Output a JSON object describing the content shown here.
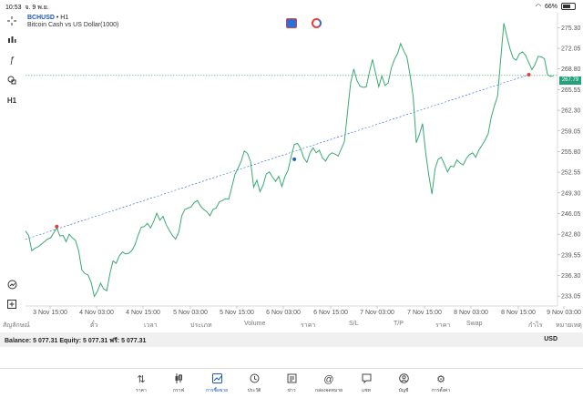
{
  "status": {
    "time": "10:53",
    "date": "จ. 9 พ.ย.",
    "battery": "66%"
  },
  "symbol": {
    "name": "BCHUSD",
    "timeframe": "• H1",
    "description": "Bitcoin Cash vs US Dollar(1000)"
  },
  "toolbar": {
    "timeframe_label": "H1"
  },
  "chart_data": {
    "type": "line",
    "y_ticks": [
      "275.30",
      "272.05",
      "268.80",
      "265.55",
      "262.30",
      "259.05",
      "255.80",
      "252.55",
      "249.30",
      "246.05",
      "242.80",
      "239.55",
      "236.30",
      "233.05"
    ],
    "x_ticks": [
      "3 Nov 15:00",
      "4 Nov 03:00",
      "4 Nov 15:00",
      "5 Nov 03:00",
      "5 Nov 15:00",
      "6 Nov 03:00",
      "6 Nov 15:00",
      "7 Nov 03:00",
      "7 Nov 15:00",
      "8 Nov 03:00",
      "8 Nov 15:00",
      "9 Nov 03:00"
    ],
    "ylim": [
      231.5,
      276.5
    ],
    "current_price": "267.79",
    "price_line": 267.79,
    "series_color": "#3aaa72",
    "values": [
      243.3,
      242.6,
      240.2,
      240.6,
      240.8,
      241.2,
      241.6,
      242.0,
      242.2,
      243.0,
      243.8,
      242.5,
      242.6,
      241.6,
      242.8,
      242.2,
      241.8,
      240.2,
      237.2,
      236.6,
      236.4,
      235.2,
      233.0,
      233.8,
      235.1,
      234.2,
      233.9,
      236.6,
      238.6,
      238.2,
      239.4,
      240.0,
      239.7,
      239.8,
      240.2,
      241.1,
      242.6,
      243.9,
      244.0,
      244.5,
      243.8,
      244.8,
      246.1,
      245.0,
      245.6,
      244.3,
      243.4,
      242.6,
      242.0,
      243.1,
      245.7,
      246.7,
      246.9,
      247.1,
      247.8,
      248.1,
      247.2,
      246.7,
      246.3,
      245.7,
      246.7,
      246.9,
      247.9,
      248.1,
      248.4,
      248.3,
      250.2,
      252.2,
      253.2,
      254.3,
      255.9,
      255.5,
      254.2,
      250.2,
      251.3,
      249.5,
      250.5,
      252.3,
      252.6,
      251.8,
      251.1,
      251.9,
      250.3,
      251.9,
      252.9,
      255.1,
      256.9,
      257.1,
      256.3,
      254.8,
      254.1,
      255.6,
      256.4,
      255.6,
      256.0,
      254.8,
      254.3,
      255.2,
      255.6,
      255.4,
      255.1,
      256.2,
      257.4,
      262.0,
      266.6,
      268.8,
      267.0,
      266.1,
      265.9,
      266.0,
      268.3,
      270.3,
      268.1,
      266.0,
      267.7,
      266.2,
      266.6,
      268.9,
      270.3,
      271.2,
      272.8,
      271.6,
      270.7,
      267.9,
      264.4,
      257.2,
      258.5,
      260.2,
      255.6,
      252.1,
      249.1,
      253.1,
      254.6,
      254.9,
      253.8,
      252.6,
      253.5,
      253.4,
      254.5,
      254.0,
      253.7,
      254.7,
      255.3,
      255.6,
      254.9,
      256.0,
      256.8,
      257.6,
      258.6,
      261.3,
      263.0,
      264.5,
      270.4,
      276.0,
      273.9,
      271.9,
      270.5,
      270.2,
      271.2,
      271.5,
      270.9,
      269.8,
      268.7,
      269.5,
      270.8,
      270.7,
      270.4,
      267.9,
      267.6,
      267.8
    ],
    "trend_line": {
      "from_index": 0,
      "from_price": 242.0,
      "to_index": 161,
      "to_price": 267.9
    },
    "trend_line_2": {
      "from_index": 86,
      "from_price": 254.6
    },
    "markers": [
      {
        "index": 10,
        "price": 244.0,
        "color": "#e04040"
      },
      {
        "index": 86,
        "price": 254.6,
        "color": "#2060d0"
      },
      {
        "index": 161,
        "price": 267.9,
        "color": "#e04040"
      }
    ]
  },
  "columns": [
    "สัญลักษณ์",
    "ตั๋ว",
    "เวลา",
    "ประเภท",
    "Volume",
    "ราคา",
    "S/L",
    "T/P",
    "ราคา",
    "Swap",
    "กำไร",
    "หมายเหตุ"
  ],
  "balance": {
    "text": "Balance: 5 077.31  Equity: 5 077.31  ฟรี: 5 077.31",
    "currency": "USD"
  },
  "tabs": [
    {
      "label": "ราคา",
      "icon": "arrows-icon"
    },
    {
      "label": "กราฟ",
      "icon": "candles-icon"
    },
    {
      "label": "การซื้อขาย",
      "icon": "trade-icon"
    },
    {
      "label": "ประวัติ",
      "icon": "history-icon"
    },
    {
      "label": "ข่าว",
      "icon": "news-icon"
    },
    {
      "label": "กล่องจดหมาย",
      "icon": "mail-icon"
    },
    {
      "label": "แชท",
      "icon": "chat-icon"
    },
    {
      "label": "บัญชี",
      "icon": "account-icon"
    },
    {
      "label": "การตั้งค่า",
      "icon": "settings-icon"
    }
  ]
}
